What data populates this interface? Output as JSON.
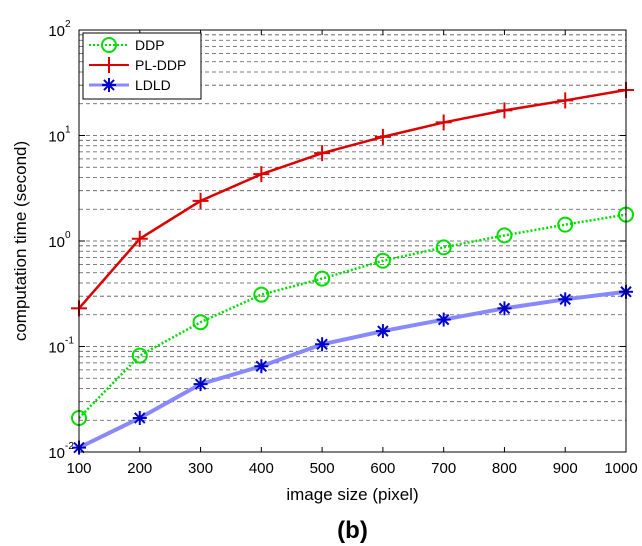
{
  "chart_data": {
    "type": "line",
    "panel_label": "(b)",
    "xlabel": "image size (pixel)",
    "ylabel": "computation time (second)",
    "xlim": [
      100,
      1000
    ],
    "ylim": [
      0.01,
      100
    ],
    "yscale": "log",
    "grid": "horizontal dashed (major and minor)",
    "legend_position": "top-left",
    "x": [
      100,
      200,
      300,
      400,
      500,
      600,
      700,
      800,
      900,
      1000
    ],
    "x_ticks": [
      "100",
      "200",
      "300",
      "400",
      "500",
      "600",
      "700",
      "800",
      "900",
      "1000"
    ],
    "y_ticks": [
      {
        "value": 0.01,
        "base": "10",
        "exp": "-2"
      },
      {
        "value": 0.1,
        "base": "10",
        "exp": "-1"
      },
      {
        "value": 1,
        "base": "10",
        "exp": "0"
      },
      {
        "value": 10,
        "base": "10",
        "exp": "1"
      },
      {
        "value": 100,
        "base": "10",
        "exp": "2"
      }
    ],
    "series": [
      {
        "name": "DDP",
        "color": "#00dd00",
        "line_style": "dotted",
        "marker": "circle",
        "values": [
          0.021,
          0.082,
          0.17,
          0.31,
          0.44,
          0.65,
          0.87,
          1.13,
          1.43,
          1.78
        ]
      },
      {
        "name": "PL-DDP",
        "color": "#dd0000",
        "line_style": "solid",
        "marker": "plus",
        "values": [
          0.23,
          1.05,
          2.4,
          4.3,
          6.8,
          9.7,
          13.3,
          17.3,
          21.5,
          27
        ]
      },
      {
        "name": "LDLD",
        "color": "#8888ff",
        "marker_color": "#0000cc",
        "line_style": "solid",
        "marker": "asterisk",
        "values": [
          0.011,
          0.021,
          0.044,
          0.065,
          0.105,
          0.14,
          0.18,
          0.23,
          0.28,
          0.33
        ]
      }
    ]
  }
}
